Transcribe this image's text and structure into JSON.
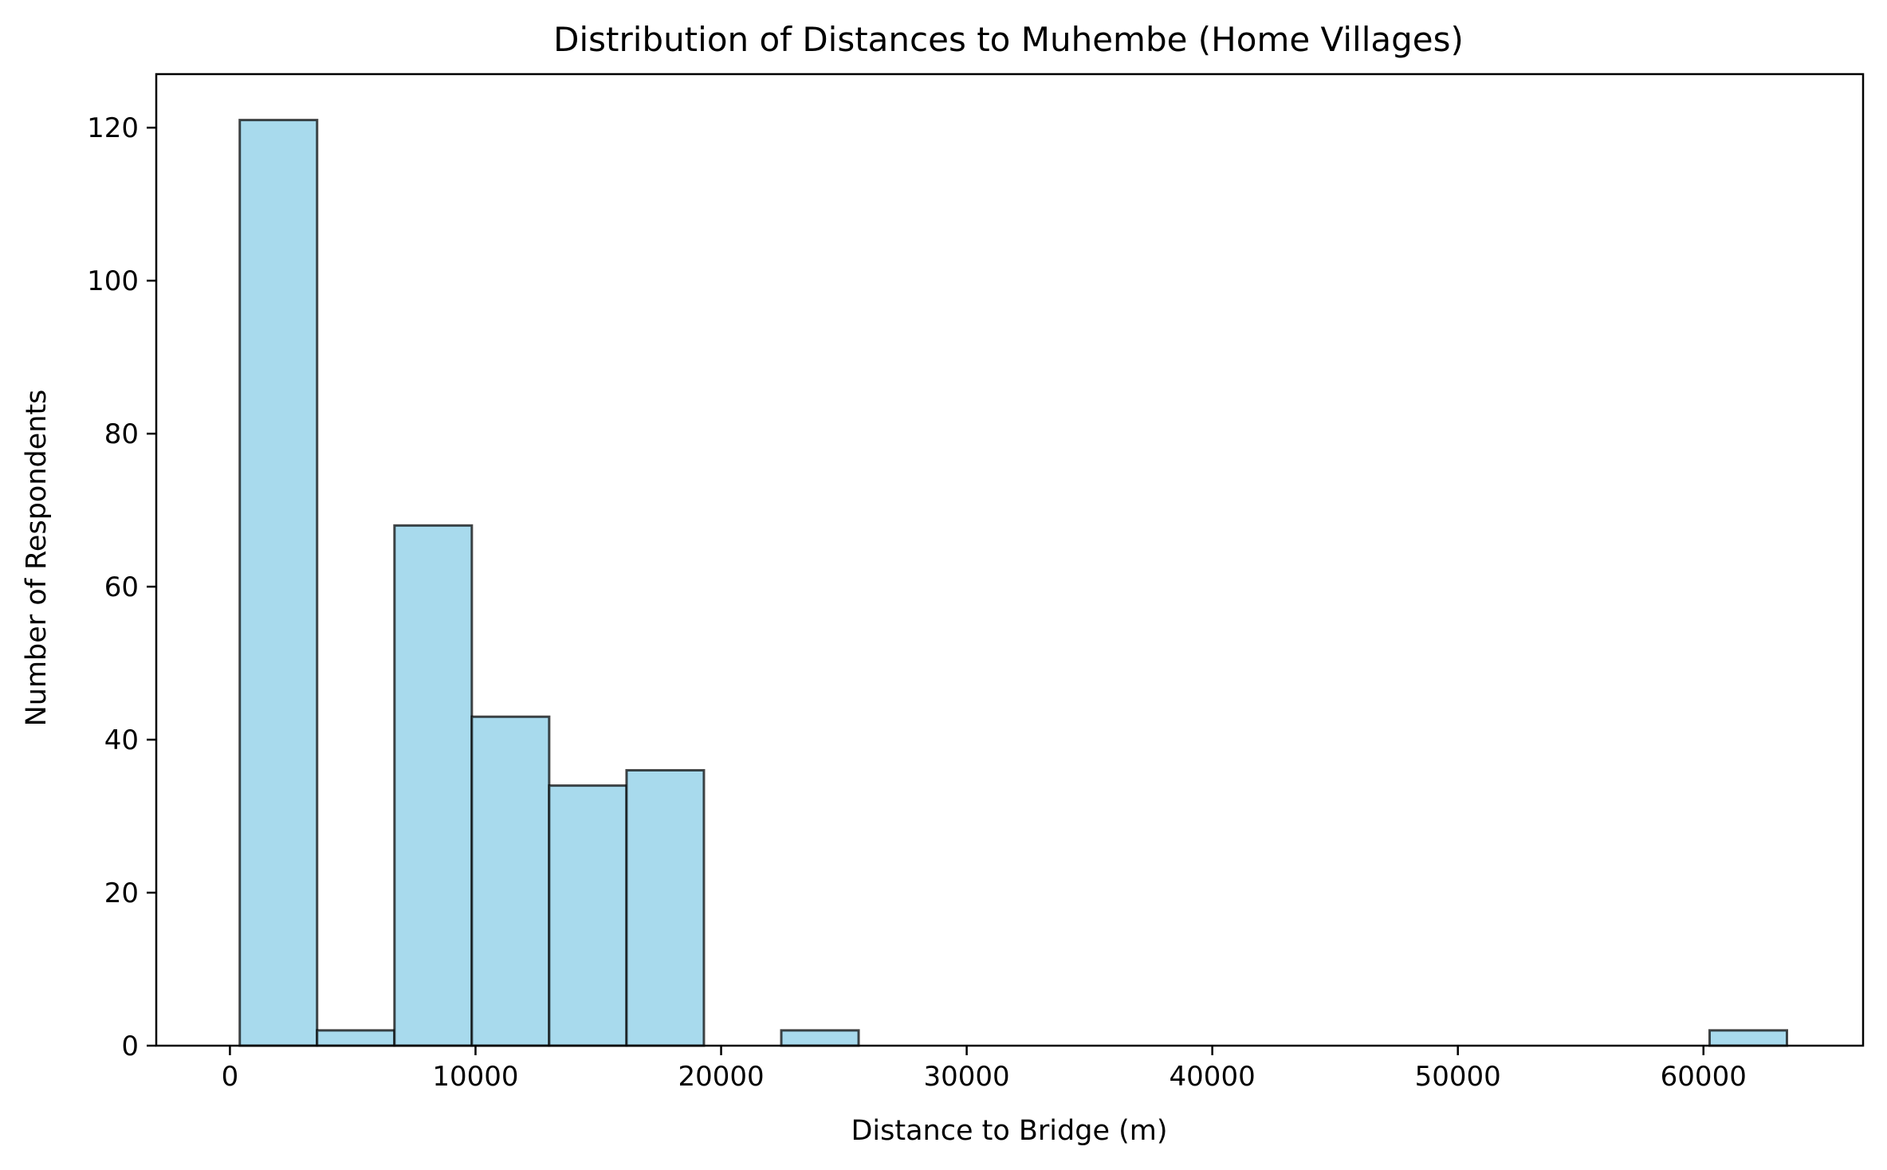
{
  "chart_data": {
    "type": "bar",
    "title": "Distribution of Distances to Muhembe (Home Villages)",
    "xlabel": "Distance to Bridge (m)",
    "ylabel": "Number of Respondents",
    "xlim": [
      -3000,
      66500
    ],
    "ylim": [
      0,
      127
    ],
    "x_ticks": [
      0,
      10000,
      20000,
      30000,
      40000,
      50000,
      60000
    ],
    "x_tick_labels": [
      "0",
      "10000",
      "20000",
      "30000",
      "40000",
      "50000",
      "60000"
    ],
    "y_ticks": [
      0,
      20,
      40,
      60,
      80,
      100,
      120
    ],
    "y_tick_labels": [
      "0",
      "20",
      "40",
      "60",
      "80",
      "100",
      "120"
    ],
    "bins": [
      {
        "x0": 400,
        "x1": 3550,
        "count": 121
      },
      {
        "x0": 3550,
        "x1": 6700,
        "count": 2
      },
      {
        "x0": 6700,
        "x1": 9850,
        "count": 68
      },
      {
        "x0": 9850,
        "x1": 13000,
        "count": 43
      },
      {
        "x0": 13000,
        "x1": 16150,
        "count": 34
      },
      {
        "x0": 16150,
        "x1": 19300,
        "count": 36
      },
      {
        "x0": 19300,
        "x1": 22450,
        "count": 0
      },
      {
        "x0": 22450,
        "x1": 25600,
        "count": 2
      },
      {
        "x0": 25600,
        "x1": 28750,
        "count": 0
      },
      {
        "x0": 28750,
        "x1": 31900,
        "count": 0
      },
      {
        "x0": 31900,
        "x1": 35050,
        "count": 0
      },
      {
        "x0": 35050,
        "x1": 38200,
        "count": 0
      },
      {
        "x0": 38200,
        "x1": 41350,
        "count": 0
      },
      {
        "x0": 41350,
        "x1": 44500,
        "count": 0
      },
      {
        "x0": 44500,
        "x1": 47650,
        "count": 0
      },
      {
        "x0": 47650,
        "x1": 50800,
        "count": 0
      },
      {
        "x0": 50800,
        "x1": 53950,
        "count": 0
      },
      {
        "x0": 53950,
        "x1": 57100,
        "count": 0
      },
      {
        "x0": 57100,
        "x1": 60250,
        "count": 0
      },
      {
        "x0": 60250,
        "x1": 63400,
        "count": 2
      }
    ],
    "bar_color": "#a8daed",
    "edge_color": "#000000",
    "grid": false,
    "legend": "none"
  }
}
